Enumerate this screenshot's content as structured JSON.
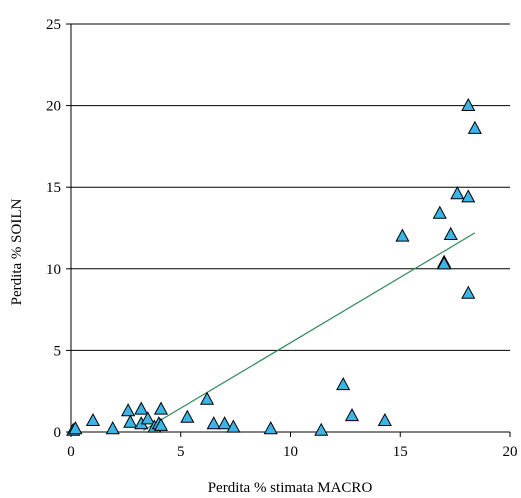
{
  "chart_data": {
    "type": "scatter",
    "xlabel": "Perdita % stimata MACRO",
    "ylabel": "Perdita %    SOILN",
    "xlim": [
      0,
      20
    ],
    "ylim": [
      0,
      25
    ],
    "x_ticks": [
      0,
      5,
      10,
      15,
      20
    ],
    "y_ticks": [
      0,
      5,
      10,
      15,
      20,
      25
    ],
    "x_tick_labels": [
      "0",
      "5",
      "10",
      "15",
      "20"
    ],
    "y_tick_labels": [
      "0",
      "5",
      "10",
      "15",
      "20",
      "25"
    ],
    "grid": "horizontal",
    "marker": "triangle",
    "marker_fill": "#3CB4E6",
    "marker_stroke": "#000000",
    "trendline_color": "#2E8B57",
    "points": [
      {
        "x": 0.1,
        "y": 0.1
      },
      {
        "x": 0.2,
        "y": 0.2
      },
      {
        "x": 1.0,
        "y": 0.7
      },
      {
        "x": 1.9,
        "y": 0.2
      },
      {
        "x": 2.6,
        "y": 1.3
      },
      {
        "x": 2.7,
        "y": 0.6
      },
      {
        "x": 3.2,
        "y": 1.4
      },
      {
        "x": 3.2,
        "y": 0.5
      },
      {
        "x": 3.5,
        "y": 0.8
      },
      {
        "x": 3.8,
        "y": 0.3
      },
      {
        "x": 4.0,
        "y": 0.5
      },
      {
        "x": 4.1,
        "y": 0.4
      },
      {
        "x": 4.1,
        "y": 1.4
      },
      {
        "x": 5.3,
        "y": 0.9
      },
      {
        "x": 6.2,
        "y": 2.0
      },
      {
        "x": 6.5,
        "y": 0.5
      },
      {
        "x": 7.0,
        "y": 0.5
      },
      {
        "x": 7.4,
        "y": 0.3
      },
      {
        "x": 9.1,
        "y": 0.2
      },
      {
        "x": 11.4,
        "y": 0.1
      },
      {
        "x": 12.4,
        "y": 2.9
      },
      {
        "x": 12.8,
        "y": 1.0
      },
      {
        "x": 14.3,
        "y": 0.7
      },
      {
        "x": 15.1,
        "y": 12.0
      },
      {
        "x": 16.8,
        "y": 13.4
      },
      {
        "x": 17.0,
        "y": 10.4
      },
      {
        "x": 17.0,
        "y": 10.3
      },
      {
        "x": 17.3,
        "y": 12.1
      },
      {
        "x": 17.6,
        "y": 14.6
      },
      {
        "x": 18.1,
        "y": 14.4
      },
      {
        "x": 18.1,
        "y": 8.5
      },
      {
        "x": 18.1,
        "y": 20.0
      },
      {
        "x": 18.4,
        "y": 18.6
      }
    ],
    "trendline": [
      {
        "x": 3.3,
        "y": 0.1
      },
      {
        "x": 18.4,
        "y": 12.2
      }
    ]
  }
}
